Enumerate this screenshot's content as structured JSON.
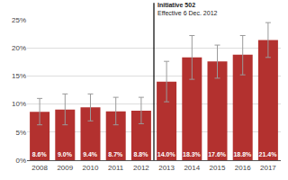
{
  "chart_data": {
    "type": "bar",
    "categories": [
      "2008",
      "2009",
      "2010",
      "2011",
      "2012",
      "2013",
      "2014",
      "2015",
      "2016",
      "2017"
    ],
    "values": [
      8.6,
      9.0,
      9.4,
      8.7,
      8.8,
      14.0,
      18.3,
      17.6,
      18.8,
      21.4
    ],
    "value_labels": [
      "8.6%",
      "9.0%",
      "9.4%",
      "8.7%",
      "8.8%",
      "14.0%",
      "18.3%",
      "17.6%",
      "18.8%",
      "21.4%"
    ],
    "error_plus": [
      2.4,
      2.8,
      2.4,
      2.5,
      2.4,
      3.6,
      3.9,
      2.9,
      3.4,
      3.1
    ],
    "error_minus": [
      2.3,
      2.7,
      2.4,
      2.4,
      2.3,
      3.6,
      3.9,
      3.0,
      3.6,
      3.1
    ],
    "color": "#b3312f",
    "data_labels": true,
    "ylim": [
      0,
      25
    ],
    "yticks": [
      {
        "value": 0,
        "label": "0%"
      },
      {
        "value": 5,
        "label": "5%"
      },
      {
        "value": 10,
        "label": "10%"
      },
      {
        "value": 15,
        "label": "15%"
      },
      {
        "value": 20,
        "label": "20%"
      },
      {
        "value": 25,
        "label": "25%"
      }
    ],
    "grid": true,
    "annotation": {
      "text": "Initiative 502",
      "subtext": "Effective 6 Dec. 2012",
      "after": "2012"
    }
  }
}
